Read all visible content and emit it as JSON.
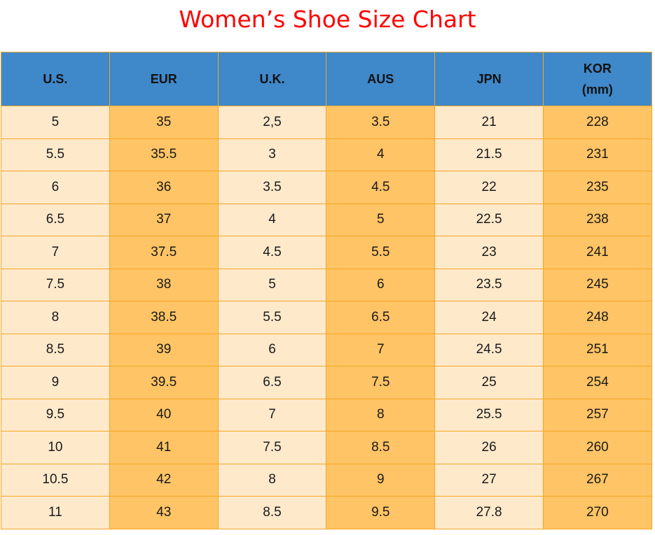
{
  "title": "Women’s Shoe Size Chart",
  "colors": {
    "title": "#ff0000",
    "header_bg": "#3f88c9",
    "light_cell": "#fee9cb",
    "dark_cell": "#ffc465",
    "border": "#f5a623"
  },
  "table": {
    "headers": [
      {
        "line1": "U.S.",
        "line2": ""
      },
      {
        "line1": "EUR",
        "line2": ""
      },
      {
        "line1": "U.K.",
        "line2": ""
      },
      {
        "line1": "AUS",
        "line2": ""
      },
      {
        "line1": "JPN",
        "line2": ""
      },
      {
        "line1": "KOR",
        "line2": "(mm)"
      }
    ],
    "rows": [
      [
        "5",
        "35",
        "2,5",
        "3.5",
        "21",
        "228"
      ],
      [
        "5.5",
        "35.5",
        "3",
        "4",
        "21.5",
        "231"
      ],
      [
        "6",
        "36",
        "3.5",
        "4.5",
        "22",
        "235"
      ],
      [
        "6.5",
        "37",
        "4",
        "5",
        "22.5",
        "238"
      ],
      [
        "7",
        "37.5",
        "4.5",
        "5.5",
        "23",
        "241"
      ],
      [
        "7.5",
        "38",
        "5",
        "6",
        "23.5",
        "245"
      ],
      [
        "8",
        "38.5",
        "5.5",
        "6.5",
        "24",
        "248"
      ],
      [
        "8.5",
        "39",
        "6",
        "7",
        "24.5",
        "251"
      ],
      [
        "9",
        "39.5",
        "6.5",
        "7.5",
        "25",
        "254"
      ],
      [
        "9.5",
        "40",
        "7",
        "8",
        "25.5",
        "257"
      ],
      [
        "10",
        "41",
        "7.5",
        "8.5",
        "26",
        "260"
      ],
      [
        "10.5",
        "42",
        "8",
        "9",
        "27",
        "267"
      ],
      [
        "11",
        "43",
        "8.5",
        "9.5",
        "27.8",
        "270"
      ]
    ]
  }
}
